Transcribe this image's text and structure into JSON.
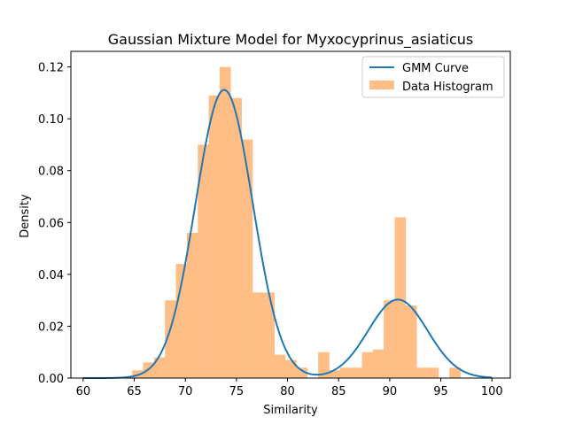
{
  "chart_data": {
    "type": "bar",
    "title": "Gaussian Mixture Model for Myxocyprinus_asiaticus",
    "xlabel": "Similarity",
    "ylabel": "Density",
    "xlim": [
      58.8,
      101.8
    ],
    "ylim": [
      0,
      0.126
    ],
    "xticks": [
      60,
      65,
      70,
      75,
      80,
      85,
      90,
      95,
      100
    ],
    "yticks": [
      0.0,
      0.02,
      0.04,
      0.06,
      0.08,
      0.1,
      0.12
    ],
    "ytick_labels": [
      "0.00",
      "0.02",
      "0.04",
      "0.06",
      "0.08",
      "0.10",
      "0.12"
    ],
    "grid": false,
    "legend_position": "top-right",
    "colors": {
      "curve": "#1f77b4",
      "histogram": "#ffbe86"
    },
    "histogram": {
      "name": "Data Histogram",
      "bin_width": 1.07,
      "bins": [
        {
          "x0": 64.8,
          "density": 0.003
        },
        {
          "x0": 65.87,
          "density": 0.006
        },
        {
          "x0": 66.94,
          "density": 0.008
        },
        {
          "x0": 68.01,
          "density": 0.03
        },
        {
          "x0": 69.08,
          "density": 0.044
        },
        {
          "x0": 70.15,
          "density": 0.056
        },
        {
          "x0": 71.22,
          "density": 0.09
        },
        {
          "x0": 72.29,
          "density": 0.109
        },
        {
          "x0": 73.36,
          "density": 0.12
        },
        {
          "x0": 74.43,
          "density": 0.108
        },
        {
          "x0": 75.5,
          "density": 0.092
        },
        {
          "x0": 76.57,
          "density": 0.033
        },
        {
          "x0": 77.64,
          "density": 0.033
        },
        {
          "x0": 78.71,
          "density": 0.009
        },
        {
          "x0": 79.78,
          "density": 0.007
        },
        {
          "x0": 80.85,
          "density": 0.004
        },
        {
          "x0": 83.0,
          "density": 0.01
        },
        {
          "x0": 84.07,
          "density": 0.003
        },
        {
          "x0": 85.14,
          "density": 0.004
        },
        {
          "x0": 86.21,
          "density": 0.004
        },
        {
          "x0": 87.28,
          "density": 0.01
        },
        {
          "x0": 88.35,
          "density": 0.011
        },
        {
          "x0": 89.42,
          "density": 0.03
        },
        {
          "x0": 90.49,
          "density": 0.062
        },
        {
          "x0": 91.56,
          "density": 0.028
        },
        {
          "x0": 92.63,
          "density": 0.004
        },
        {
          "x0": 93.7,
          "density": 0.004
        },
        {
          "x0": 95.84,
          "density": 0.004
        }
      ]
    },
    "curve": {
      "name": "GMM Curve",
      "components": [
        {
          "weight": 0.78,
          "mean": 73.8,
          "sd": 2.8
        },
        {
          "weight": 0.22,
          "mean": 90.8,
          "sd": 2.9
        }
      ],
      "x_range": [
        60,
        100
      ]
    }
  }
}
